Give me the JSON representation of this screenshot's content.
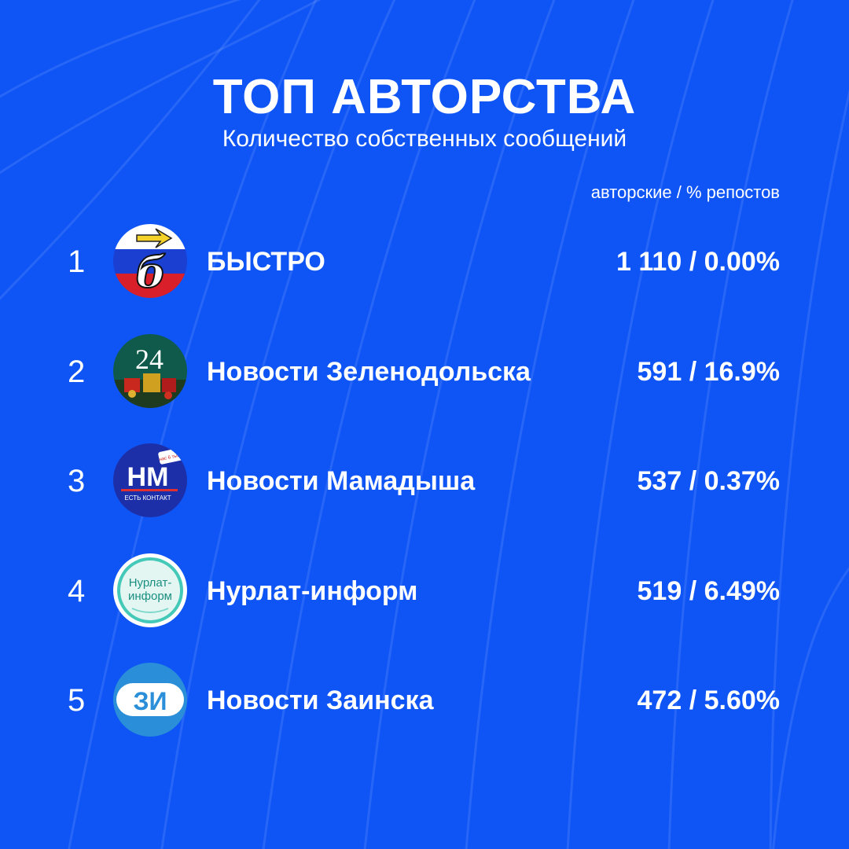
{
  "header": {
    "title": "ТОП АВТОРСТВА",
    "subtitle": "Количество собственных сообщений",
    "column_label": "авторские / % репостов"
  },
  "rows": [
    {
      "rank": "1",
      "name": "БЫСТРО",
      "value": "1 110 / 0.00%",
      "logo": "bystro-logo",
      "logo_text": "б"
    },
    {
      "rank": "2",
      "name": "Новости Зеленодольска",
      "value": "591 / 16.9%",
      "logo": "zelenodolsk-24-logo",
      "logo_text": "24"
    },
    {
      "rank": "3",
      "name": "Новости Мамадыша",
      "value": "537 / 0.37%",
      "logo": "mamadysh-nm-logo",
      "logo_text": "НМ",
      "logo_subtext": "ЕСТЬ КОНТАКТ",
      "logo_badge": "нас 6 тыс+"
    },
    {
      "rank": "4",
      "name": "Нурлат-информ",
      "value": "519 / 6.49%",
      "logo": "nurlat-inform-logo",
      "logo_text": "Нурлат-",
      "logo_text2": "информ"
    },
    {
      "rank": "5",
      "name": "Новости Заинска",
      "value": "472 / 5.60%",
      "logo": "zainsk-zi-logo",
      "logo_text": "ЗИ"
    }
  ],
  "colors": {
    "background": "#0f55f5",
    "text": "#ffffff"
  }
}
